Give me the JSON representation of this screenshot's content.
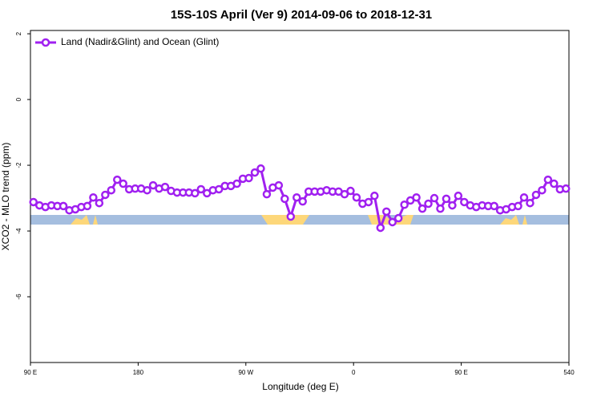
{
  "chart_data": {
    "type": "line",
    "title": "15S-10S April (Ver 9)   2014-09-06 to 2018-12-31",
    "x_label": "Longitude (deg E)",
    "y_label": "XCO2 - MLO trend (ppm)",
    "xlim": [
      90,
      540
    ],
    "ylim": [
      -8,
      2.1
    ],
    "xticks": [
      {
        "value": 90,
        "label": "90 E"
      },
      180,
      {
        "value": 270,
        "label": "90 W"
      },
      {
        "value": 360,
        "label": "0"
      },
      {
        "value": 450,
        "label": "90 E"
      },
      540
    ],
    "yticks": [
      2,
      0,
      -2,
      -4,
      -6
    ],
    "legend": "top-left",
    "x": [
      92.5,
      97.5,
      102.5,
      107.5,
      112.5,
      117.5,
      122.5,
      127.5,
      132.5,
      137.5,
      142.5,
      147.5,
      152.5,
      157.5,
      162.5,
      167.5,
      172.5,
      177.5,
      182.5,
      187.5,
      192.5,
      197.5,
      202.5,
      207.5,
      212.5,
      217.5,
      222.5,
      227.5,
      232.5,
      237.5,
      242.5,
      247.5,
      252.5,
      257.5,
      262.5,
      267.5,
      272.5,
      277.5,
      282.5,
      287.5,
      292.5,
      297.5,
      302.5,
      307.5,
      312.5,
      317.5,
      322.5,
      327.5,
      332.5,
      337.5,
      342.5,
      347.5,
      352.5,
      357.5,
      362.5,
      367.5,
      372.5,
      377.5,
      382.5,
      387.5,
      392.5,
      397.5,
      402.5,
      407.5,
      412.5,
      417.5,
      422.5,
      427.5,
      432.5,
      437.5,
      442.5,
      447.5,
      452.5,
      457.5,
      462.5,
      467.5,
      472.5,
      477.5,
      482.5,
      487.5,
      492.5,
      497.5,
      502.5,
      507.5,
      512.5,
      517.5,
      522.5,
      527.5,
      532.5,
      537.5
    ],
    "series": [
      {
        "name": "Land (Nadir&Glint) and Ocean (Glint)",
        "color": "#a020f0",
        "values": [
          -3.12,
          -3.22,
          -3.27,
          -3.22,
          -3.24,
          -3.24,
          -3.37,
          -3.34,
          -3.27,
          -3.24,
          -2.98,
          -3.15,
          -2.9,
          -2.76,
          -2.44,
          -2.56,
          -2.73,
          -2.71,
          -2.71,
          -2.76,
          -2.61,
          -2.71,
          -2.66,
          -2.78,
          -2.83,
          -2.83,
          -2.83,
          -2.85,
          -2.73,
          -2.85,
          -2.76,
          -2.73,
          -2.63,
          -2.63,
          -2.56,
          -2.41,
          -2.39,
          -2.22,
          -2.1,
          -2.88,
          -2.68,
          -2.61,
          -3.02,
          -3.56,
          -2.98,
          -3.1,
          -2.8,
          -2.8,
          -2.8,
          -2.76,
          -2.8,
          -2.8,
          -2.88,
          -2.78,
          -2.98,
          -3.17,
          -3.12,
          -2.93,
          -3.9,
          -3.41,
          -3.73,
          -3.61,
          -3.2,
          -3.07,
          -2.98,
          -3.32,
          -3.17,
          -3.0,
          -3.32,
          -3.02,
          -3.22,
          -2.93,
          -3.12,
          -3.22,
          -3.27,
          -3.22,
          -3.24,
          -3.24,
          -3.37,
          -3.34,
          -3.27,
          -3.24,
          -2.98,
          -3.15,
          -2.9,
          -2.76,
          -2.44,
          -2.56,
          -2.73,
          -2.71
        ]
      }
    ]
  }
}
